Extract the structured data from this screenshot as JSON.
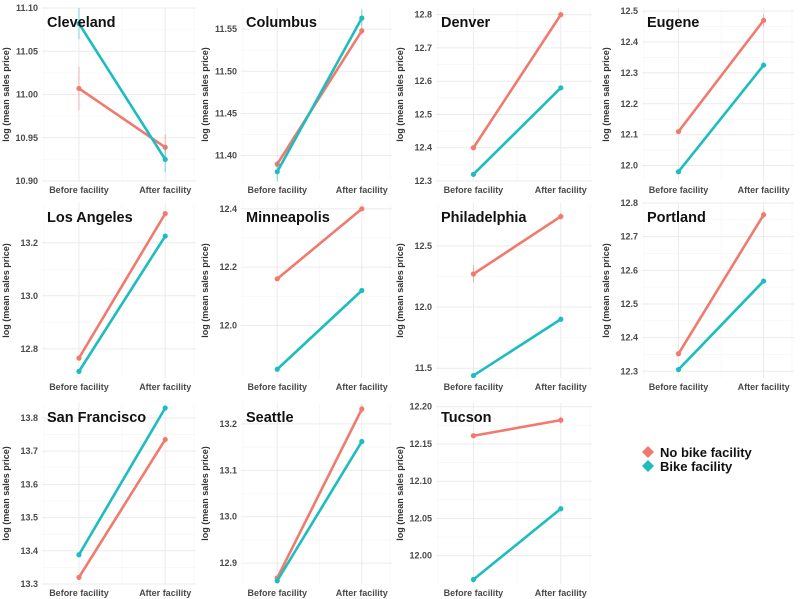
{
  "colors": {
    "no_facility": "#F07A6E",
    "facility": "#1DBDBF"
  },
  "legend": [
    {
      "label": "No bike facility",
      "color": "#F07A6E"
    },
    {
      "label": "Bike facility",
      "color": "#1DBDBF"
    }
  ],
  "chart_data": [
    {
      "type": "line",
      "title": "Cleveland",
      "ylabel": "log (mean sales price)",
      "categories": [
        "Before facility",
        "After facility"
      ],
      "yticks": [
        "10.90",
        "10.95",
        "11.00",
        "11.05",
        "11.10"
      ],
      "ylim": [
        10.9,
        11.1
      ],
      "series": [
        {
          "name": "No bike facility",
          "values": [
            11.007,
            10.939
          ],
          "err": [
            0.025,
            0.015
          ]
        },
        {
          "name": "Bike facility",
          "values": [
            11.082,
            10.925
          ],
          "err": [
            0.018,
            0.015
          ]
        }
      ]
    },
    {
      "type": "line",
      "title": "Columbus",
      "ylabel": "log (mean sales price)",
      "categories": [
        "Before facility",
        "After facility"
      ],
      "yticks": [
        "11.40",
        "11.45",
        "11.50",
        "11.55"
      ],
      "ylim": [
        11.37,
        11.575
      ],
      "series": [
        {
          "name": "No bike facility",
          "values": [
            11.39,
            11.548
          ],
          "err": [
            0.004,
            0.005
          ]
        },
        {
          "name": "Bike facility",
          "values": [
            11.381,
            11.563
          ],
          "err": [
            0.012,
            0.01
          ]
        }
      ]
    },
    {
      "type": "line",
      "title": "Denver",
      "ylabel": "log (mean sales price)",
      "categories": [
        "Before facility",
        "After facility"
      ],
      "yticks": [
        "12.3",
        "12.4",
        "12.5",
        "12.6",
        "12.7",
        "12.8"
      ],
      "ylim": [
        12.3,
        12.82
      ],
      "series": [
        {
          "name": "No bike facility",
          "values": [
            12.4,
            12.8
          ],
          "err": [
            0.005,
            0.005
          ]
        },
        {
          "name": "Bike facility",
          "values": [
            12.32,
            12.58
          ],
          "err": [
            0.004,
            0.004
          ]
        }
      ]
    },
    {
      "type": "line",
      "title": "Eugene",
      "ylabel": "log (mean sales price)",
      "categories": [
        "Before facility",
        "After facility"
      ],
      "yticks": [
        "12.0",
        "12.1",
        "12.2",
        "12.3",
        "12.4",
        "12.5"
      ],
      "ylim": [
        11.95,
        12.51
      ],
      "series": [
        {
          "name": "No bike facility",
          "values": [
            12.11,
            12.47
          ],
          "err": [
            0.008,
            0.02
          ]
        },
        {
          "name": "Bike facility",
          "values": [
            11.98,
            12.325
          ],
          "err": [
            0.005,
            0.006
          ]
        }
      ]
    },
    {
      "type": "line",
      "title": "Los Angeles",
      "ylabel": "log (mean sales price)",
      "categories": [
        "Before facility",
        "After facility"
      ],
      "yticks": [
        "12.8",
        "13.0",
        "13.2"
      ],
      "ylim": [
        12.69,
        13.35
      ],
      "series": [
        {
          "name": "No bike facility",
          "values": [
            12.765,
            13.31
          ],
          "err": [
            0.004,
            0.004
          ]
        },
        {
          "name": "Bike facility",
          "values": [
            12.715,
            13.225
          ],
          "err": [
            0.003,
            0.003
          ]
        }
      ]
    },
    {
      "type": "line",
      "title": "Minneapolis",
      "ylabel": "log (mean sales price)",
      "categories": [
        "Before facility",
        "After facility"
      ],
      "yticks": [
        "12.0",
        "12.2",
        "12.4"
      ],
      "ylim": [
        11.82,
        12.42
      ],
      "series": [
        {
          "name": "No bike facility",
          "values": [
            12.16,
            12.4
          ],
          "err": [
            0.006,
            0.006
          ]
        },
        {
          "name": "Bike facility",
          "values": [
            11.85,
            12.12
          ],
          "err": [
            0.004,
            0.004
          ]
        }
      ]
    },
    {
      "type": "line",
      "title": "Philadelphia",
      "ylabel": "log (mean sales price)",
      "categories": [
        "Before facility",
        "After facility"
      ],
      "yticks": [
        "11.5",
        "12.0",
        "12.5"
      ],
      "ylim": [
        11.42,
        12.85
      ],
      "series": [
        {
          "name": "No bike facility",
          "values": [
            12.27,
            12.74
          ],
          "err": [
            0.07,
            0.03
          ]
        },
        {
          "name": "Bike facility",
          "values": [
            11.44,
            11.9
          ],
          "err": [
            0.008,
            0.008
          ]
        }
      ]
    },
    {
      "type": "line",
      "title": "Portland",
      "ylabel": "log (mean sales price)",
      "categories": [
        "Before facility",
        "After facility"
      ],
      "yticks": [
        "12.3",
        "12.4",
        "12.5",
        "12.6",
        "12.7",
        "12.8"
      ],
      "ylim": [
        12.28,
        12.8
      ],
      "series": [
        {
          "name": "No bike facility",
          "values": [
            12.352,
            12.765
          ],
          "err": [
            0.004,
            0.01
          ]
        },
        {
          "name": "Bike facility",
          "values": [
            12.305,
            12.568
          ],
          "err": [
            0.003,
            0.003
          ]
        }
      ]
    },
    {
      "type": "line",
      "title": "San Francisco",
      "ylabel": "log (mean sales price)",
      "categories": [
        "Before facility",
        "After facility"
      ],
      "yticks": [
        "13.3",
        "13.4",
        "13.5",
        "13.6",
        "13.7",
        "13.8"
      ],
      "ylim": [
        13.3,
        13.845
      ],
      "series": [
        {
          "name": "No bike facility",
          "values": [
            13.32,
            13.735
          ],
          "err": [
            0.004,
            0.004
          ]
        },
        {
          "name": "Bike facility",
          "values": [
            13.388,
            13.83
          ],
          "err": [
            0.004,
            0.004
          ]
        }
      ]
    },
    {
      "type": "line",
      "title": "Seattle",
      "ylabel": "log (mean sales price)",
      "categories": [
        "Before facility",
        "After facility"
      ],
      "yticks": [
        "12.9",
        "13.0",
        "13.1",
        "13.2"
      ],
      "ylim": [
        12.855,
        13.245
      ],
      "series": [
        {
          "name": "No bike facility",
          "values": [
            12.868,
            13.232
          ],
          "err": [
            0.003,
            0.008
          ]
        },
        {
          "name": "Bike facility",
          "values": [
            12.862,
            13.162
          ],
          "err": [
            0.003,
            0.003
          ]
        }
      ]
    },
    {
      "type": "line",
      "title": "Tucson",
      "ylabel": "log (mean sales price)",
      "categories": [
        "Before facility",
        "After facility"
      ],
      "yticks": [
        "12.00",
        "12.05",
        "12.10",
        "12.15",
        "12.20"
      ],
      "ylim": [
        11.962,
        12.205
      ],
      "series": [
        {
          "name": "No bike facility",
          "values": [
            12.161,
            12.182
          ],
          "err": [
            0.002,
            0.005
          ]
        },
        {
          "name": "Bike facility",
          "values": [
            11.968,
            12.063
          ],
          "err": [
            0.002,
            0.003
          ]
        }
      ]
    }
  ]
}
